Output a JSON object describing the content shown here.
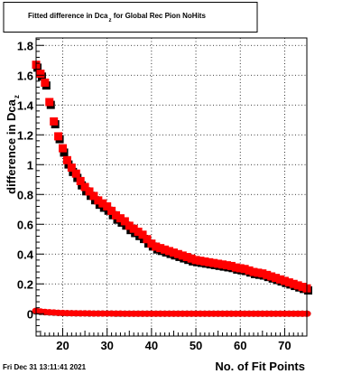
{
  "chart_data": {
    "type": "scatter",
    "title": "Fitted difference in Dca",
    "title_sub": "z",
    "title_tail": " for Global Rec Pion NoHits",
    "xlabel": "No. of Fit Points",
    "ylabel": "difference in Dca",
    "ylabel_sub": "z",
    "xlim": [
      14,
      75
    ],
    "ylim": [
      -0.15,
      1.85
    ],
    "xticks": [
      20,
      30,
      40,
      50,
      60,
      70
    ],
    "yticks": [
      0,
      0.2,
      0.4,
      0.6,
      0.8,
      1,
      1.2,
      1.4,
      1.6,
      1.8
    ],
    "ytick_labels": [
      "0",
      "0.2",
      "0.4",
      "0.6",
      "0.8",
      "1",
      "1.2",
      "1.4",
      "1.6",
      "1.8"
    ],
    "grid": true,
    "colors": {
      "red": "#ff0000",
      "black": "#000000"
    },
    "series": [
      {
        "color": "#ff0000",
        "marker": "square",
        "x": [
          14,
          15,
          16,
          17,
          18,
          19,
          20,
          21,
          22,
          23,
          24,
          25,
          26,
          27,
          28,
          29,
          30,
          31,
          32,
          33,
          34,
          35,
          36,
          37,
          38,
          39,
          40,
          41,
          42,
          43,
          44,
          45,
          46,
          47,
          48,
          49,
          50,
          51,
          52,
          53,
          54,
          55,
          56,
          57,
          58,
          59,
          60,
          61,
          62,
          63,
          64,
          65,
          66,
          67,
          68,
          69,
          70,
          71,
          72,
          73,
          74,
          75
        ],
        "y": [
          1.67,
          1.61,
          1.55,
          1.42,
          1.29,
          1.19,
          1.11,
          1.03,
          0.98,
          0.94,
          0.89,
          0.85,
          0.82,
          0.79,
          0.76,
          0.74,
          0.72,
          0.69,
          0.66,
          0.64,
          0.62,
          0.59,
          0.57,
          0.55,
          0.53,
          0.5,
          0.47,
          0.45,
          0.44,
          0.43,
          0.42,
          0.41,
          0.4,
          0.39,
          0.38,
          0.37,
          0.36,
          0.355,
          0.35,
          0.345,
          0.34,
          0.335,
          0.33,
          0.325,
          0.32,
          0.31,
          0.305,
          0.3,
          0.29,
          0.28,
          0.275,
          0.27,
          0.26,
          0.25,
          0.24,
          0.23,
          0.22,
          0.21,
          0.2,
          0.19,
          0.18,
          0.17
        ]
      },
      {
        "color": "#000000",
        "marker": "square",
        "x": [
          14,
          15,
          16,
          17,
          18,
          19,
          20,
          21,
          22,
          23,
          24,
          25,
          26,
          27,
          28,
          29,
          30,
          31,
          32,
          33,
          34,
          35,
          36,
          37,
          38,
          39,
          40,
          41,
          42,
          43,
          44,
          45,
          46,
          47,
          48,
          49,
          50,
          51,
          52,
          53,
          54,
          55,
          56,
          57,
          58,
          59,
          60,
          61,
          62,
          63,
          64,
          65,
          66,
          67,
          68,
          69,
          70,
          71,
          72,
          73,
          74,
          75
        ],
        "y": [
          1.66,
          1.6,
          1.54,
          1.41,
          1.28,
          1.18,
          1.09,
          1.01,
          0.96,
          0.92,
          0.87,
          0.83,
          0.8,
          0.77,
          0.74,
          0.72,
          0.7,
          0.67,
          0.64,
          0.62,
          0.6,
          0.57,
          0.55,
          0.53,
          0.51,
          0.48,
          0.46,
          0.44,
          0.43,
          0.42,
          0.41,
          0.4,
          0.39,
          0.38,
          0.37,
          0.36,
          0.355,
          0.35,
          0.345,
          0.34,
          0.335,
          0.33,
          0.325,
          0.32,
          0.315,
          0.305,
          0.3,
          0.295,
          0.285,
          0.275,
          0.27,
          0.265,
          0.255,
          0.245,
          0.235,
          0.225,
          0.215,
          0.205,
          0.195,
          0.185,
          0.175,
          0.165
        ]
      },
      {
        "color": "#ff0000",
        "marker": "circle",
        "x": [
          14,
          15,
          16,
          17,
          18,
          19,
          20,
          21,
          22,
          23,
          24,
          25,
          26,
          27,
          28,
          29,
          30,
          31,
          32,
          33,
          34,
          35,
          36,
          37,
          38,
          39,
          40,
          41,
          42,
          43,
          44,
          45,
          46,
          47,
          48,
          49,
          50,
          51,
          52,
          53,
          54,
          55,
          56,
          57,
          58,
          59,
          60,
          61,
          62,
          63,
          64,
          65,
          66,
          67,
          68,
          69,
          70,
          71,
          72,
          73,
          74,
          75
        ],
        "y": [
          0.02,
          0.015,
          0.012,
          0.01,
          0.008,
          0.006,
          0.005,
          0.004,
          0.003,
          0.003,
          0.002,
          0.002,
          0.002,
          0.001,
          0.001,
          0.001,
          0.001,
          0.001,
          0.001,
          0.001,
          0,
          0,
          0,
          0,
          0,
          0,
          0,
          0,
          0,
          0,
          0,
          0,
          0,
          0,
          0,
          0,
          0,
          0,
          0,
          0,
          0,
          0,
          0,
          0,
          0,
          0,
          0,
          0,
          0,
          0,
          0,
          0,
          0,
          0,
          0,
          0,
          0,
          0,
          0,
          0,
          0,
          0
        ]
      },
      {
        "color": "#000000",
        "marker": "circle",
        "x": [
          14,
          15,
          16,
          17,
          18,
          19,
          20,
          21,
          22,
          23,
          24,
          25,
          26,
          27,
          28,
          29,
          30,
          31,
          32,
          33,
          34,
          35,
          36,
          37,
          38,
          39,
          40,
          41,
          42,
          43,
          44,
          45,
          46,
          47,
          48,
          49,
          50,
          51,
          52,
          53,
          54,
          55,
          56,
          57,
          58,
          59,
          60,
          61,
          62,
          63,
          64,
          65,
          66,
          67,
          68,
          69,
          70,
          71,
          72,
          73,
          74,
          75
        ],
        "y": [
          0.015,
          0.012,
          0.01,
          0.008,
          0.007,
          0.005,
          0.004,
          0.003,
          0.003,
          0.002,
          0.002,
          0.002,
          0.001,
          0.001,
          0.001,
          0.001,
          0.001,
          0.001,
          0,
          0,
          0,
          0,
          0,
          0,
          0,
          0,
          0,
          0,
          0,
          0,
          0,
          0,
          0,
          0,
          0,
          0,
          0,
          0,
          0,
          0,
          0,
          0,
          0,
          0,
          0,
          0,
          0,
          0,
          0,
          0,
          0,
          0,
          0,
          0,
          0,
          0,
          0,
          0,
          0,
          0,
          0,
          0
        ]
      }
    ]
  },
  "footer": {
    "timestamp": "Fri Dec 31 13:11:41 2021"
  }
}
